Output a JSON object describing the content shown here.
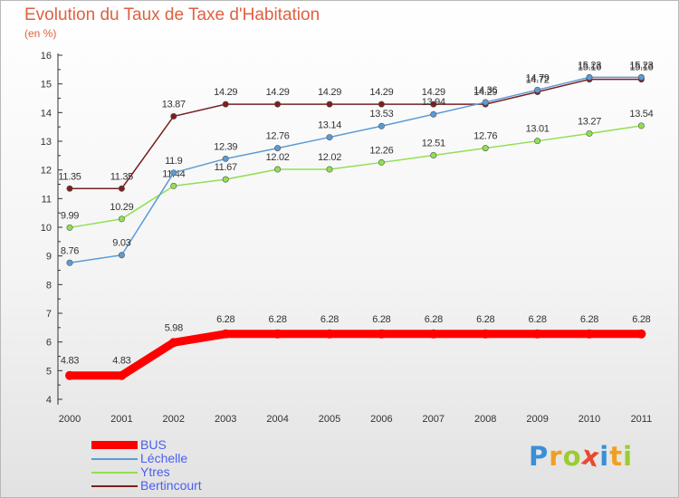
{
  "title": "Evolution du Taux de Taxe d'Habitation",
  "unit_label": "(en %)",
  "brand": {
    "letters": [
      "P",
      "r",
      "o",
      "x",
      "i",
      "t",
      "i"
    ],
    "colors": [
      "#3a8fd8",
      "#f0a020",
      "#9ccc30",
      "#e84a30",
      "#3a8fd8",
      "#f0a020",
      "#9ccc30"
    ]
  },
  "chart_data": {
    "type": "line",
    "title": "Evolution du Taux de Taxe d'Habitation",
    "ylabel": "(en %)",
    "xlabel": "",
    "categories": [
      "2000",
      "2001",
      "2002",
      "2003",
      "2004",
      "2005",
      "2006",
      "2007",
      "2008",
      "2009",
      "2010",
      "2011"
    ],
    "ylim": [
      4,
      16
    ],
    "yticks": [
      "4",
      "5",
      "6",
      "7",
      "8",
      "9",
      "10",
      "11",
      "12",
      "13",
      "14",
      "15",
      "16"
    ],
    "grid": false,
    "legend": "bottom-left",
    "series": [
      {
        "name": "BUS",
        "color": "#ff0000",
        "values": [
          4.83,
          4.83,
          5.98,
          6.28,
          6.28,
          6.28,
          6.28,
          6.28,
          6.28,
          6.28,
          6.28,
          6.28
        ],
        "labels": [
          "4.83",
          "4.83",
          "5.98",
          "6.28",
          "6.28",
          "6.28",
          "6.28",
          "6.28",
          "6.28",
          "6.28",
          "6.28",
          "6.28"
        ]
      },
      {
        "name": "Léchelle",
        "color": "#5b9bd5",
        "values": [
          8.76,
          9.03,
          11.9,
          12.39,
          12.76,
          13.14,
          13.53,
          13.94,
          14.36,
          14.79,
          15.23,
          15.23
        ],
        "labels": [
          "8.76",
          "9.03",
          "11.9",
          "12.39",
          "12.76",
          "13.14",
          "13.53",
          "13.94",
          "14.36",
          "14.79",
          "15.23",
          "15.23"
        ]
      },
      {
        "name": "Ytres",
        "color": "#90e050",
        "values": [
          9.99,
          10.29,
          11.44,
          11.67,
          12.02,
          12.02,
          12.26,
          12.51,
          12.76,
          13.01,
          13.27,
          13.54
        ],
        "labels": [
          "9.99",
          "10.29",
          "11.44",
          "11.67",
          "12.02",
          "12.02",
          "12.26",
          "12.51",
          "12.76",
          "13.01",
          "13.27",
          "13.54"
        ]
      },
      {
        "name": "Bertincourt",
        "color": "#7a2020",
        "values": [
          11.35,
          11.35,
          13.87,
          14.29,
          14.29,
          14.29,
          14.29,
          14.29,
          14.29,
          14.72,
          15.16,
          15.16
        ],
        "labels": [
          "11.35",
          "11.35",
          "13.87",
          "14.29",
          "14.29",
          "14.29",
          "14.29",
          "14.29",
          "14.29",
          "14.72",
          "15.16",
          "15.16"
        ]
      }
    ]
  }
}
